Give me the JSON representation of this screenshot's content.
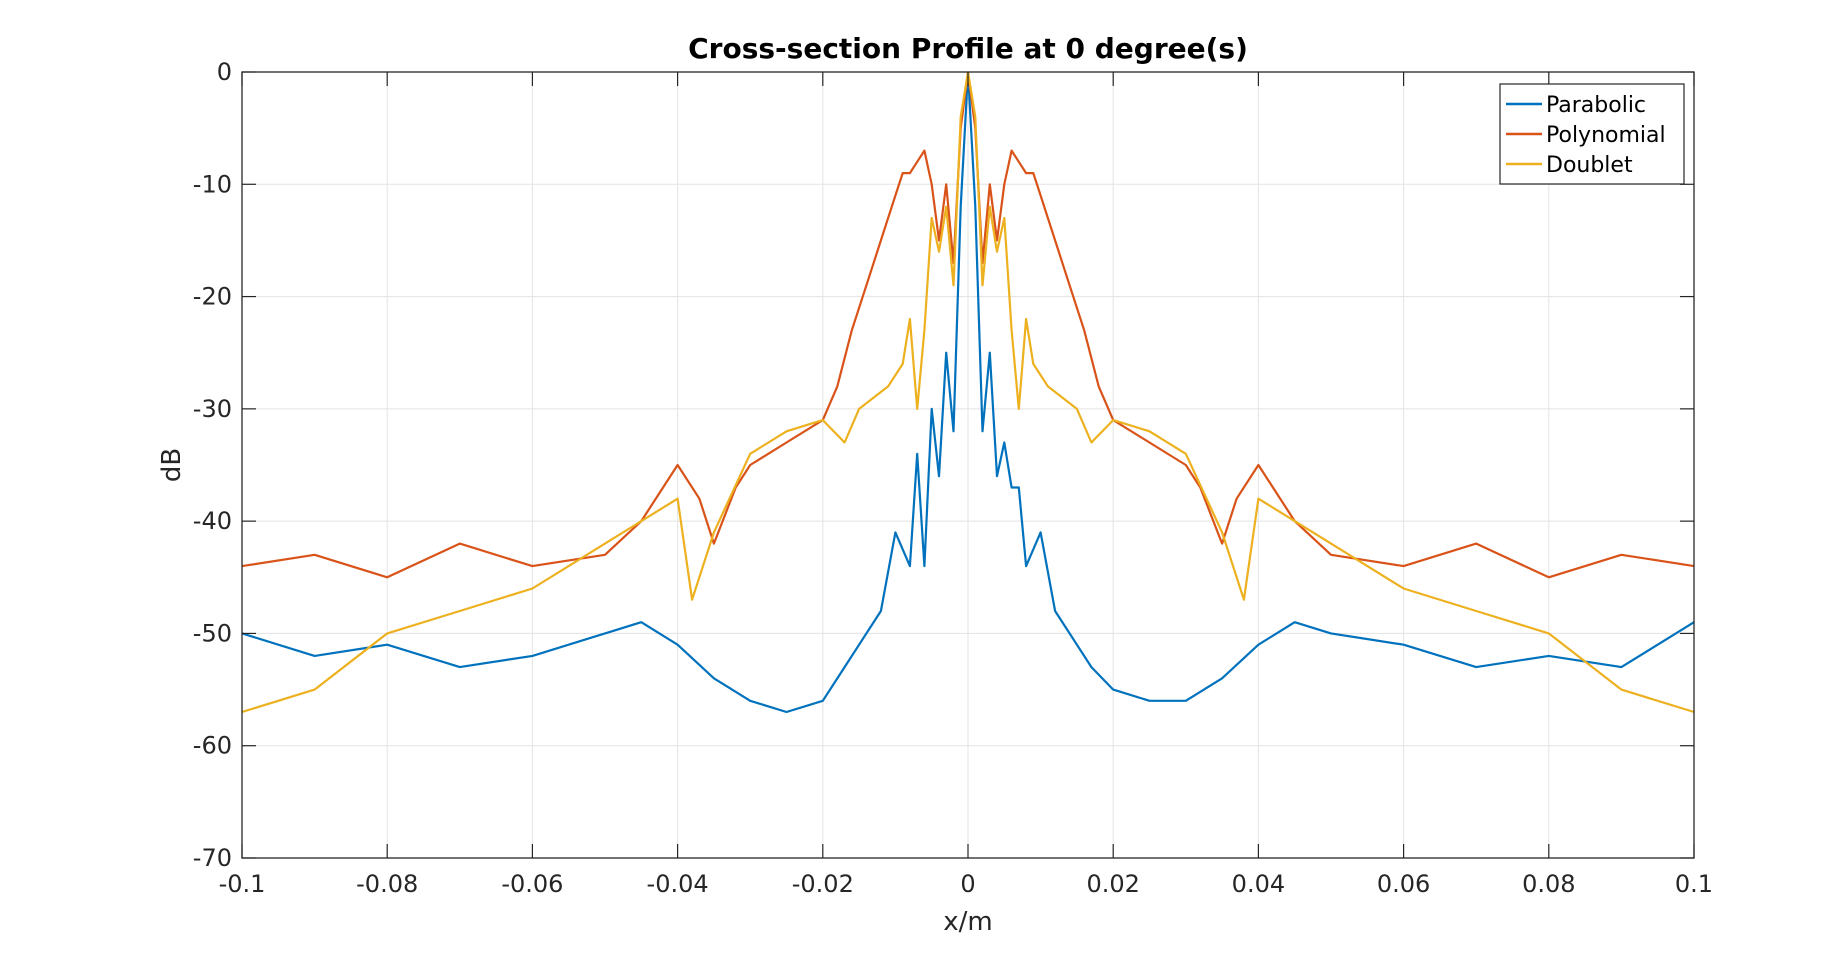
{
  "chart_data": {
    "type": "line",
    "title": "Cross-section Profile at 0 degree(s)",
    "xlabel": "x/m",
    "ylabel": "dB",
    "xlim": [
      -0.1,
      0.1
    ],
    "ylim": [
      -70,
      0
    ],
    "xticks": [
      -0.1,
      -0.08,
      -0.06,
      -0.04,
      -0.02,
      0,
      0.02,
      0.04,
      0.06,
      0.08,
      0.1
    ],
    "xtick_labels": [
      "-0.1",
      "-0.08",
      "-0.06",
      "-0.04",
      "-0.02",
      "0",
      "0.02",
      "0.04",
      "0.06",
      "0.08",
      "0.1"
    ],
    "yticks": [
      0,
      -10,
      -20,
      -30,
      -40,
      -50,
      -60,
      -70
    ],
    "ytick_labels": [
      "0",
      "-10",
      "-20",
      "-30",
      "-40",
      "-50",
      "-60",
      "-70"
    ],
    "grid": true,
    "legend_position": "top-right",
    "series": [
      {
        "name": "Parabolic",
        "color": "#0072BD",
        "x": [
          -0.1,
          -0.09,
          -0.08,
          -0.07,
          -0.06,
          -0.05,
          -0.045,
          -0.04,
          -0.035,
          -0.03,
          -0.025,
          -0.02,
          -0.017,
          -0.015,
          -0.012,
          -0.01,
          -0.008,
          -0.007,
          -0.006,
          -0.005,
          -0.004,
          -0.003,
          -0.002,
          -0.001,
          0,
          0.001,
          0.002,
          0.003,
          0.004,
          0.005,
          0.006,
          0.007,
          0.008,
          0.01,
          0.012,
          0.015,
          0.017,
          0.02,
          0.025,
          0.03,
          0.035,
          0.04,
          0.045,
          0.05,
          0.06,
          0.07,
          0.08,
          0.09,
          0.1
        ],
        "y": [
          -50,
          -52,
          -51,
          -53,
          -52,
          -50,
          -49,
          -51,
          -54,
          -56,
          -57,
          -56,
          -53,
          -51,
          -48,
          -41,
          -44,
          -34,
          -44,
          -30,
          -36,
          -25,
          -32,
          -12,
          0,
          -12,
          -32,
          -25,
          -36,
          -33,
          -37,
          -37,
          -44,
          -41,
          -48,
          -51,
          -53,
          -55,
          -56,
          -56,
          -54,
          -51,
          -49,
          -50,
          -51,
          -53,
          -52,
          -53,
          -49
        ]
      },
      {
        "name": "Polynomial",
        "color": "#D95319",
        "x": [
          -0.1,
          -0.09,
          -0.08,
          -0.07,
          -0.06,
          -0.05,
          -0.045,
          -0.04,
          -0.037,
          -0.035,
          -0.032,
          -0.03,
          -0.025,
          -0.02,
          -0.018,
          -0.016,
          -0.014,
          -0.012,
          -0.01,
          -0.009,
          -0.008,
          -0.007,
          -0.006,
          -0.005,
          -0.004,
          -0.003,
          -0.002,
          -0.001,
          0,
          0.001,
          0.002,
          0.003,
          0.004,
          0.005,
          0.006,
          0.007,
          0.008,
          0.009,
          0.01,
          0.012,
          0.014,
          0.016,
          0.018,
          0.02,
          0.025,
          0.03,
          0.032,
          0.035,
          0.037,
          0.04,
          0.045,
          0.05,
          0.06,
          0.07,
          0.08,
          0.09,
          0.1
        ],
        "y": [
          -44,
          -43,
          -45,
          -42,
          -44,
          -43,
          -40,
          -35,
          -38,
          -42,
          -37,
          -35,
          -33,
          -31,
          -28,
          -23,
          -19,
          -15,
          -11,
          -9,
          -9,
          -8,
          -7,
          -10,
          -15,
          -10,
          -17,
          -5,
          0,
          -5,
          -17,
          -10,
          -15,
          -10,
          -7,
          -8,
          -9,
          -9,
          -11,
          -15,
          -19,
          -23,
          -28,
          -31,
          -33,
          -35,
          -37,
          -42,
          -38,
          -35,
          -40,
          -43,
          -44,
          -42,
          -45,
          -43,
          -44
        ]
      },
      {
        "name": "Doublet",
        "color": "#EDB120",
        "x": [
          -0.1,
          -0.09,
          -0.08,
          -0.07,
          -0.06,
          -0.05,
          -0.045,
          -0.04,
          -0.038,
          -0.035,
          -0.03,
          -0.025,
          -0.02,
          -0.017,
          -0.015,
          -0.013,
          -0.011,
          -0.009,
          -0.008,
          -0.007,
          -0.006,
          -0.005,
          -0.004,
          -0.003,
          -0.002,
          -0.001,
          0,
          0.001,
          0.002,
          0.003,
          0.004,
          0.005,
          0.006,
          0.007,
          0.008,
          0.009,
          0.011,
          0.013,
          0.015,
          0.017,
          0.02,
          0.025,
          0.03,
          0.035,
          0.038,
          0.04,
          0.045,
          0.05,
          0.06,
          0.07,
          0.08,
          0.09,
          0.1
        ],
        "y": [
          -57,
          -55,
          -50,
          -48,
          -46,
          -42,
          -40,
          -38,
          -47,
          -41,
          -34,
          -32,
          -31,
          -33,
          -30,
          -29,
          -28,
          -26,
          -22,
          -30,
          -23,
          -13,
          -16,
          -12,
          -19,
          -4,
          0,
          -4,
          -19,
          -12,
          -16,
          -13,
          -23,
          -30,
          -22,
          -26,
          -28,
          -29,
          -30,
          -33,
          -31,
          -32,
          -34,
          -41,
          -47,
          -38,
          -40,
          -42,
          -46,
          -48,
          -50,
          -55,
          -57
        ]
      }
    ]
  }
}
